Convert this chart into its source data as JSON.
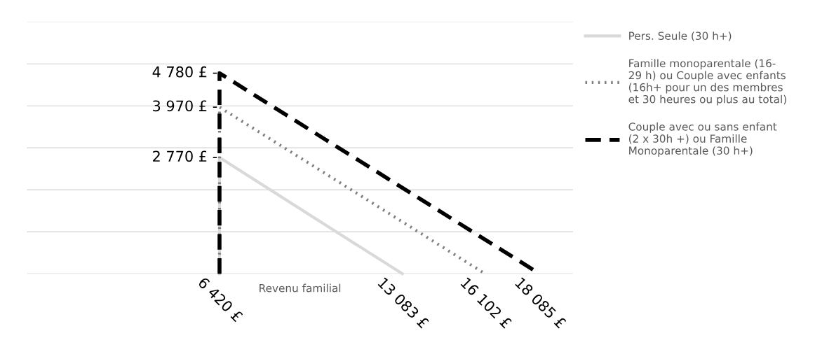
{
  "chart_data": {
    "type": "line",
    "xlabel": "Revenu familial",
    "series": [
      {
        "name": "Pers. Seule (30 h+)",
        "color": "#d9d9d9",
        "line_style": "solid",
        "x": [
          6420,
          6420,
          13083
        ],
        "values": [
          0,
          2770,
          0
        ],
        "value_labels": [
          null,
          "2 770 £ -",
          null
        ]
      },
      {
        "name": "Famille monoparentale (16-\n29 h) ou Couple avec enfants\n(16h+ pour un des membres\net 30 heures ou plus au total)",
        "color": "#7f7f7f",
        "line_style": "dotted",
        "x": [
          6420,
          6420,
          16102
        ],
        "values": [
          0,
          3970,
          0
        ],
        "value_labels": [
          null,
          "3 970 £ -",
          null
        ]
      },
      {
        "name": "Couple avec ou sans enfant\n(2 x 30h +) ou Famille\nMonoparentale (30 h+)",
        "color": "#000000",
        "line_style": "dashed",
        "x": [
          6420,
          6420,
          18085
        ],
        "values": [
          0,
          4780,
          0
        ],
        "value_labels": [
          null,
          "4 780 £ -",
          null
        ]
      }
    ],
    "xlim": [
      -600,
      19300
    ],
    "xticks": [
      {
        "value": 6420,
        "label": "6 420 £"
      },
      {
        "value": 13083,
        "label": "13 083 £"
      },
      {
        "value": 16102,
        "label": "16 102 £"
      },
      {
        "value": 18085,
        "label": "18 085 £"
      }
    ],
    "ylim": [
      0,
      6000
    ],
    "yticks": [
      {
        "value": 0,
        "label": null
      },
      {
        "value": 1000,
        "label": null
      },
      {
        "value": 2000,
        "label": null
      },
      {
        "value": 3000,
        "label": null
      },
      {
        "value": 4000,
        "label": null
      },
      {
        "value": 5000,
        "label": null
      },
      {
        "value": 6000,
        "label": null
      }
    ],
    "grid": "y",
    "legend": "top right",
    "tick_labels": "x"
  }
}
